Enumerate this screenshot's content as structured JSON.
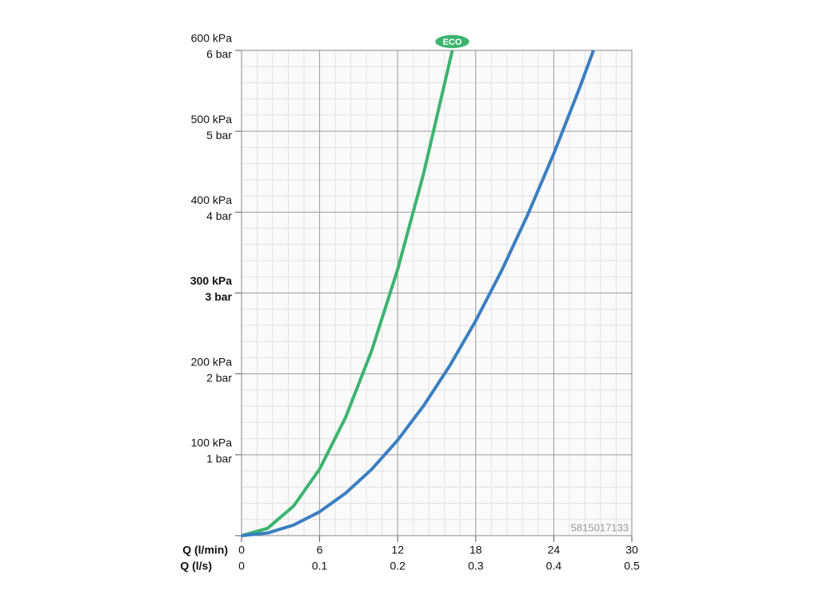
{
  "chart_data": {
    "type": "line",
    "xlabel": "Q (l/min)",
    "x2label": "Q (l/s)",
    "xlim": [
      0,
      30
    ],
    "xticks": [
      0,
      6,
      12,
      18,
      24,
      30
    ],
    "x2lim": [
      0,
      0.5
    ],
    "x2ticks": [
      0,
      0.1,
      0.2,
      0.3,
      0.4,
      0.5
    ],
    "ylim": [
      0,
      600
    ],
    "yticks": [
      {
        "value": 0,
        "label": ""
      },
      {
        "value": 100,
        "label": "100 kPa"
      },
      {
        "value": 200,
        "label": "200 kPa"
      },
      {
        "value": 300,
        "label": "300 kPa"
      },
      {
        "value": 400,
        "label": "400 kPa"
      },
      {
        "value": 500,
        "label": "500 kPa"
      },
      {
        "value": 600,
        "label": "600 kPa"
      }
    ],
    "y2lim": [
      0,
      6
    ],
    "y2ticks": [
      {
        "value": 0,
        "label": ""
      },
      {
        "value": 1,
        "label": "1 bar"
      },
      {
        "value": 2,
        "label": "2 bar"
      },
      {
        "value": 3,
        "label": "3 bar"
      },
      {
        "value": 4,
        "label": "4 bar"
      },
      {
        "value": 5,
        "label": "5 bar"
      },
      {
        "value": 6,
        "label": "6 bar"
      }
    ],
    "emphasized_ytick": 300,
    "grid": true,
    "minor_divisions": 5,
    "annotation": "5815017133",
    "series": [
      {
        "name": "ECO",
        "color": "#3cb46e",
        "x": [
          0,
          2,
          4,
          6,
          8,
          10,
          12,
          14,
          16.2
        ],
        "values": [
          0,
          9.1,
          36.6,
          82.3,
          146.3,
          228.6,
          329.2,
          448.1,
          600
        ]
      },
      {
        "color": "#3a7fc1",
        "x": [
          0,
          2,
          4,
          6,
          8,
          10,
          12,
          14,
          16,
          18,
          20,
          22,
          24,
          26,
          27.05
        ],
        "values": [
          0,
          3.3,
          13.1,
          29.5,
          52.5,
          82,
          118.1,
          160.7,
          209.9,
          265.7,
          328,
          396.9,
          472.3,
          554.3,
          600
        ]
      }
    ]
  }
}
